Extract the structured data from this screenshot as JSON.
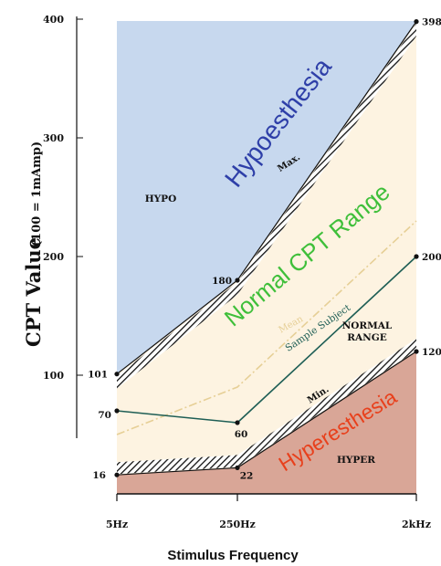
{
  "chart_data": {
    "type": "line",
    "title": "",
    "xlabel": "Stimulus Frequency",
    "ylabel": "CPT Value",
    "ylabel_unit": "(100 = 1mAmp)",
    "categories": [
      "5Hz",
      "250Hz",
      "2kHz"
    ],
    "ylim": [
      0,
      400
    ],
    "y_ticks": [
      100,
      200,
      300,
      400
    ],
    "series": [
      {
        "name": "Max.",
        "values": [
          101,
          180,
          398
        ],
        "labels": [
          "101",
          "180",
          "398"
        ]
      },
      {
        "name": "Mean",
        "values": [
          50,
          90,
          230
        ],
        "labels": []
      },
      {
        "name": "Sample Subject",
        "values": [
          70,
          60,
          200
        ],
        "labels": [
          "70",
          "60",
          "200"
        ]
      },
      {
        "name": "Min.",
        "values": [
          16,
          22,
          120
        ],
        "labels": [
          "16",
          "22",
          "120"
        ]
      }
    ],
    "regions": [
      {
        "label": "Hypoesthesia",
        "tag": "HYPO",
        "color": "#c7d8ee"
      },
      {
        "label": "Normal CPT Range",
        "tag": "NORMAL RANGE",
        "color": "#fdf3e1"
      },
      {
        "label": "Hyperesthesia",
        "tag": "HYPER",
        "color": "#d9a697"
      }
    ],
    "colors": {
      "hypo_text": "#2e3fa8",
      "normal_text": "#3fbf3a",
      "hyper_text": "#e8401c",
      "mean_line": "#e6cf96",
      "subject_line": "#1e5e55"
    },
    "grid": false
  }
}
